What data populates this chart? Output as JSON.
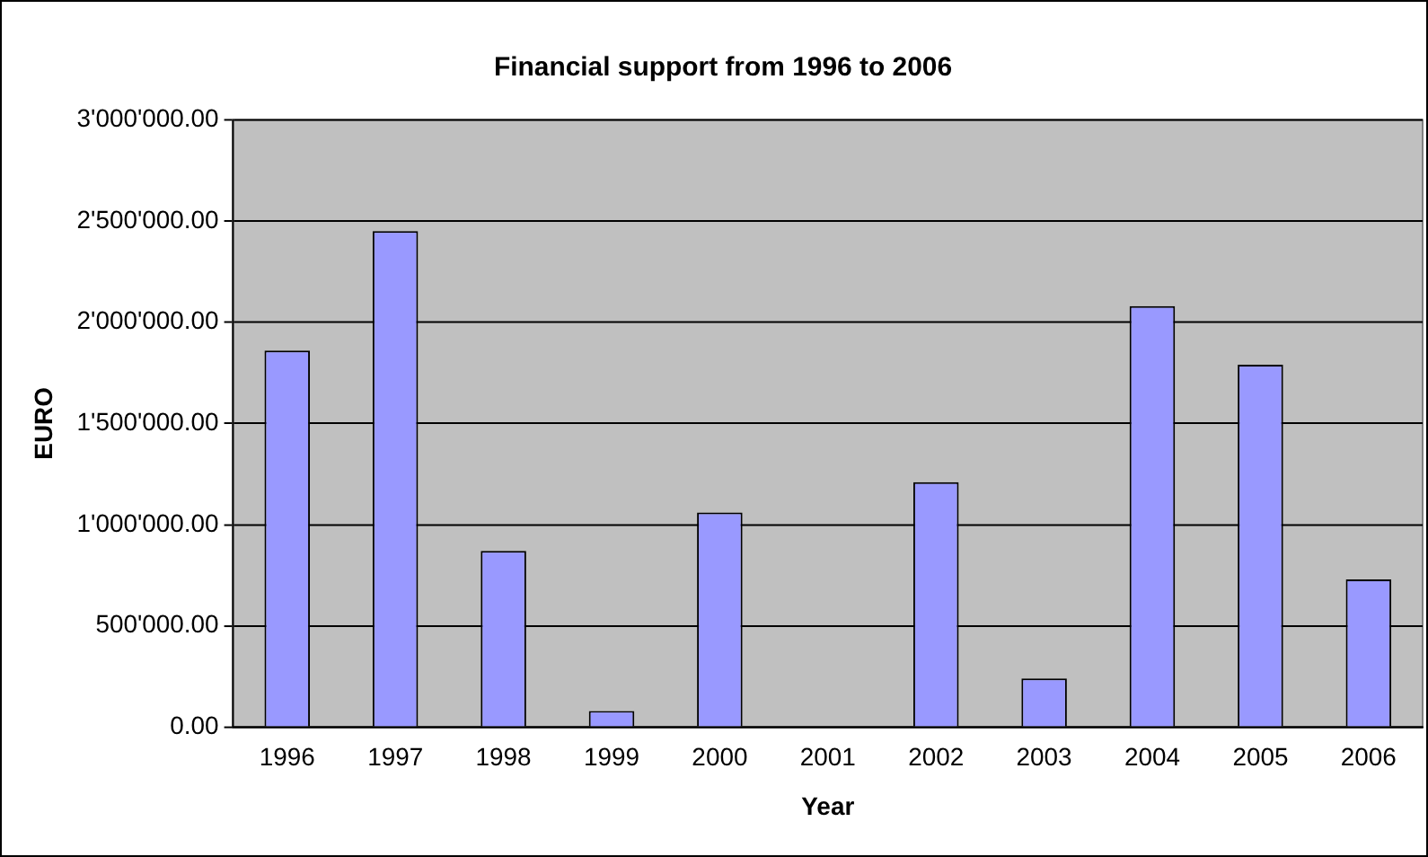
{
  "chart_data": {
    "type": "bar",
    "title": "Financial support from 1996 to 2006",
    "xlabel": "Year",
    "ylabel": "EURO",
    "categories": [
      "1996",
      "1997",
      "1998",
      "1999",
      "2000",
      "2001",
      "2002",
      "2003",
      "2004",
      "2005",
      "2006"
    ],
    "values": [
      1860000,
      2450000,
      870000,
      80000,
      1060000,
      0,
      1210000,
      240000,
      2080000,
      1790000,
      730000
    ],
    "color": "#9999ff",
    "ylim": [
      0,
      3000000
    ],
    "yticks": [
      {
        "value": 0,
        "label": "0.00"
      },
      {
        "value": 500000,
        "label": "500'000.00"
      },
      {
        "value": 1000000,
        "label": "1'000'000.00"
      },
      {
        "value": 1500000,
        "label": "1'500'000.00"
      },
      {
        "value": 2000000,
        "label": "2'000'000.00"
      },
      {
        "value": 2500000,
        "label": "2'500'000.00"
      },
      {
        "value": 3000000,
        "label": "3'000'000.00"
      }
    ],
    "grid": "y",
    "legend": false
  }
}
